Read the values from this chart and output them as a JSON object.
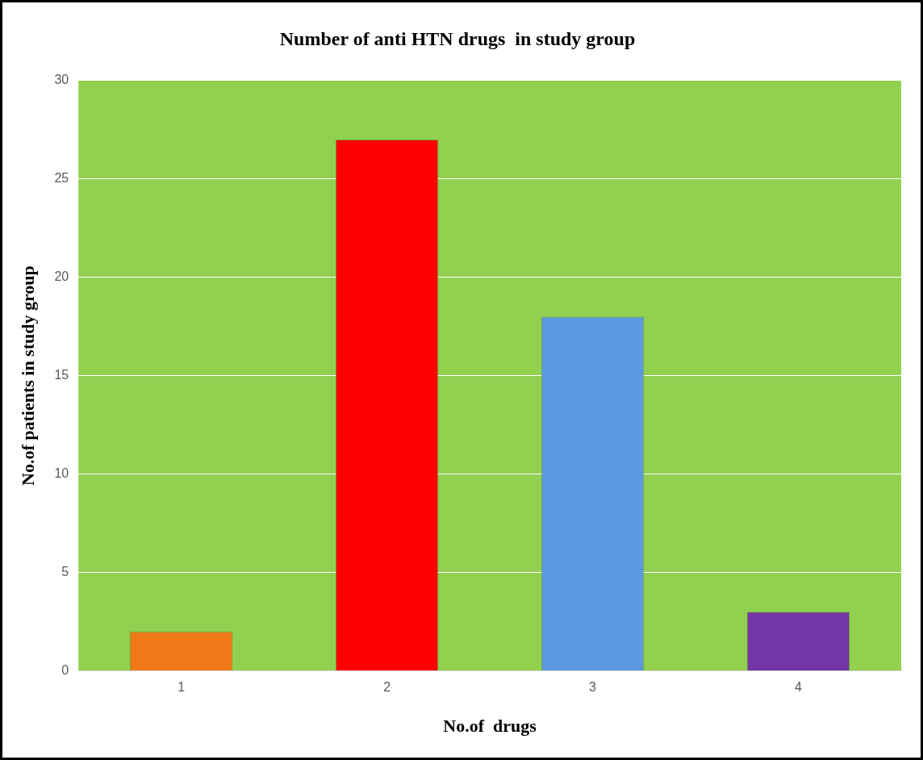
{
  "chart_data": {
    "type": "bar",
    "title": "Number of anti HTN drugs  in study group",
    "xlabel": "No.of  drugs",
    "ylabel": "No.of patients in study group",
    "categories": [
      "1",
      "2",
      "3",
      "4"
    ],
    "values": [
      2,
      27,
      18,
      3
    ],
    "colors": [
      "#f07817",
      "#ff0000",
      "#5b9ae0",
      "#7435a6"
    ],
    "ylim": [
      0,
      30
    ],
    "yticks": [
      0,
      5,
      10,
      15,
      20,
      25,
      30
    ],
    "grid": "y",
    "legend": false
  }
}
